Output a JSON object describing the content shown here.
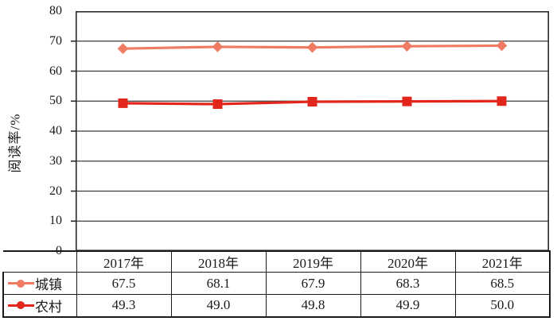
{
  "chart_data": {
    "type": "line",
    "title": "",
    "xlabel": "",
    "ylabel": "阅读率/%",
    "ylim": [
      0,
      80
    ],
    "yticks": [
      0,
      10,
      20,
      30,
      40,
      50,
      60,
      70,
      80
    ],
    "grid": true,
    "legend_position": "table-left",
    "categories": [
      "2017年",
      "2018年",
      "2019年",
      "2020年",
      "2021年"
    ],
    "series": [
      {
        "name": "城镇",
        "values": [
          67.5,
          68.1,
          67.9,
          68.3,
          68.5
        ],
        "display_values": [
          "67.5",
          "68.1",
          "67.9",
          "68.3",
          "68.5"
        ],
        "color": "#EF7B63",
        "marker": "diamond"
      },
      {
        "name": "农村",
        "values": [
          49.3,
          49.0,
          49.8,
          49.9,
          50.0
        ],
        "display_values": [
          "49.3",
          "49.0",
          "49.8",
          "49.9",
          "50.0"
        ],
        "color": "#E2261C",
        "marker": "square"
      }
    ],
    "axis_color": "#2B2B2B",
    "grid_color": "#3D3D3D",
    "table_border_color": "#1A1A1A"
  }
}
